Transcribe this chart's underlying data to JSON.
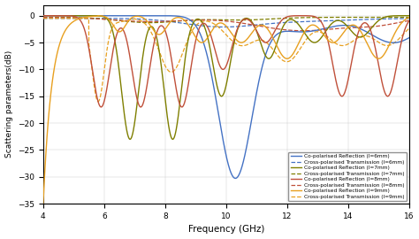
{
  "xlabel": "Frequency (GHz)",
  "ylabel": "Scattering parameters(dB)",
  "xlim": [
    4,
    16
  ],
  "ylim": [
    -35,
    2
  ],
  "yticks": [
    0,
    -5,
    -10,
    -15,
    -20,
    -25,
    -30,
    -35
  ],
  "xticks": [
    4,
    6,
    8,
    10,
    12,
    14,
    16
  ],
  "colors": {
    "l6": "#4472C4",
    "l7": "#7F7F00",
    "l8": "#C0503A",
    "l9": "#E8A020"
  },
  "legend_entries": [
    "Co-polarised Reflection (l=6mm)",
    "Cross-polarised Transmission (l=6mm)",
    "Co-polarised Reflection (l=7mm)",
    "Cross-polarised Transmission (l=7mm)",
    "Co-polarised Reflection (l=8mm)",
    "Cross-polarised Transmission (l=8mm)",
    "Co-polarised Reflection (l=9mm)",
    "Cross-polarised Transmission (l=9mm)"
  ]
}
